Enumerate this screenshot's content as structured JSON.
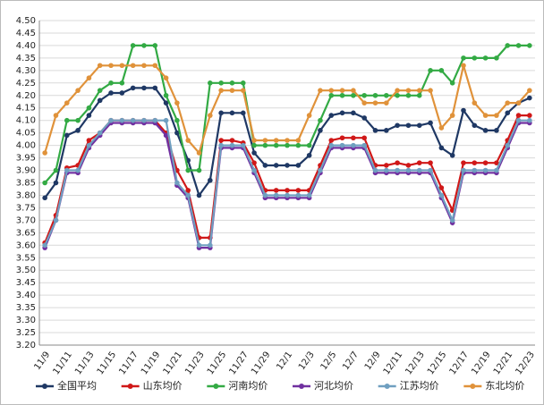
{
  "chart_data": {
    "type": "line",
    "categories": [
      "11/9",
      null,
      "11/11",
      null,
      "11/13",
      null,
      "11/15",
      null,
      "11/17",
      null,
      "11/19",
      null,
      "11/21",
      null,
      "11/23",
      null,
      "11/25",
      null,
      "11/27",
      null,
      "11/29",
      null,
      "12/1",
      null,
      "12/3",
      null,
      "12/5",
      null,
      "12/7",
      null,
      "12/9",
      null,
      "12/11",
      null,
      "12/13",
      null,
      "12/15",
      null,
      "12/17",
      null,
      "12/19",
      null,
      "12/21",
      null,
      "12/23"
    ],
    "series": [
      {
        "name": "全国平均",
        "color": "#1f3864",
        "values": [
          3.79,
          3.85,
          4.04,
          4.06,
          4.12,
          4.18,
          4.21,
          4.21,
          4.23,
          4.23,
          4.23,
          4.17,
          4.05,
          3.94,
          3.8,
          3.86,
          4.13,
          4.13,
          4.13,
          3.97,
          3.92,
          3.92,
          3.92,
          3.92,
          3.96,
          4.06,
          4.12,
          4.13,
          4.13,
          4.11,
          4.06,
          4.06,
          4.08,
          4.08,
          4.08,
          4.09,
          3.99,
          3.96,
          4.14,
          4.08,
          4.06,
          4.06,
          4.13,
          4.17,
          4.19
        ]
      },
      {
        "name": "山东均价",
        "color": "#d01818",
        "values": [
          3.61,
          3.72,
          3.91,
          3.92,
          4.02,
          4.05,
          4.1,
          4.1,
          4.1,
          4.1,
          4.1,
          4.05,
          3.9,
          3.82,
          3.63,
          3.63,
          4.02,
          4.02,
          4.01,
          3.93,
          3.82,
          3.82,
          3.82,
          3.82,
          3.82,
          3.92,
          4.02,
          4.03,
          4.03,
          4.03,
          3.92,
          3.92,
          3.93,
          3.92,
          3.93,
          3.93,
          3.83,
          3.74,
          3.93,
          3.93,
          3.93,
          3.93,
          4.02,
          4.12,
          4.12
        ]
      },
      {
        "name": "河南均价",
        "color": "#33aa44",
        "values": [
          3.85,
          3.9,
          4.1,
          4.1,
          4.15,
          4.22,
          4.25,
          4.25,
          4.4,
          4.4,
          4.4,
          4.2,
          4.1,
          3.9,
          3.9,
          4.25,
          4.25,
          4.25,
          4.25,
          4.0,
          4.0,
          4.0,
          4.0,
          4.0,
          4.0,
          4.1,
          4.2,
          4.2,
          4.2,
          4.2,
          4.2,
          4.2,
          4.2,
          4.2,
          4.2,
          4.3,
          4.3,
          4.25,
          4.35,
          4.35,
          4.35,
          4.35,
          4.4,
          4.4,
          4.4
        ]
      },
      {
        "name": "河北均价",
        "color": "#7030a0",
        "values": [
          3.59,
          3.7,
          3.89,
          3.89,
          3.99,
          4.04,
          4.09,
          4.09,
          4.09,
          4.09,
          4.09,
          4.04,
          3.84,
          3.79,
          3.59,
          3.59,
          3.99,
          3.99,
          3.99,
          3.89,
          3.79,
          3.79,
          3.79,
          3.79,
          3.79,
          3.89,
          3.99,
          3.99,
          3.99,
          3.99,
          3.89,
          3.89,
          3.89,
          3.89,
          3.89,
          3.89,
          3.79,
          3.69,
          3.89,
          3.89,
          3.89,
          3.89,
          3.99,
          4.09,
          4.09
        ]
      },
      {
        "name": "江苏均价",
        "color": "#6f9fc0",
        "values": [
          3.6,
          3.7,
          3.9,
          3.9,
          4.0,
          4.05,
          4.1,
          4.1,
          4.1,
          4.1,
          4.1,
          4.1,
          3.85,
          3.8,
          3.6,
          3.6,
          4.0,
          4.0,
          4.0,
          3.9,
          3.8,
          3.8,
          3.8,
          3.8,
          3.8,
          3.9,
          4.0,
          4.0,
          4.0,
          4.0,
          3.9,
          3.9,
          3.9,
          3.9,
          3.9,
          3.9,
          3.8,
          3.7,
          3.9,
          3.9,
          3.9,
          3.9,
          4.0,
          4.1,
          4.1
        ]
      },
      {
        "name": "东北均价",
        "color": "#e0923a",
        "values": [
          3.97,
          4.12,
          4.17,
          4.22,
          4.27,
          4.32,
          4.32,
          4.32,
          4.32,
          4.32,
          4.32,
          4.27,
          4.17,
          4.02,
          3.97,
          4.12,
          4.22,
          4.22,
          4.22,
          4.02,
          4.02,
          4.02,
          4.02,
          4.02,
          4.12,
          4.22,
          4.22,
          4.22,
          4.22,
          4.17,
          4.17,
          4.17,
          4.22,
          4.22,
          4.22,
          4.22,
          4.07,
          4.12,
          4.32,
          4.17,
          4.12,
          4.12,
          4.17,
          4.17,
          4.22
        ]
      }
    ],
    "ylim": [
      3.2,
      4.5
    ],
    "yticks": [
      {
        "value": 3.2,
        "label": "3.20"
      },
      {
        "value": 3.25,
        "label": "3.25"
      },
      {
        "value": 3.3,
        "label": "3.30"
      },
      {
        "value": 3.35,
        "label": "3.35"
      },
      {
        "value": 3.4,
        "label": "3.40"
      },
      {
        "value": 3.45,
        "label": "3.45"
      },
      {
        "value": 3.5,
        "label": "3.50"
      },
      {
        "value": 3.55,
        "label": "3.55"
      },
      {
        "value": 3.6,
        "label": "3.60"
      },
      {
        "value": 3.65,
        "label": "3.65"
      },
      {
        "value": 3.7,
        "label": "3.70"
      },
      {
        "value": 3.75,
        "label": "3.75"
      },
      {
        "value": 3.8,
        "label": "3.80"
      },
      {
        "value": 3.85,
        "label": "3.85"
      },
      {
        "value": 3.9,
        "label": "3.90"
      },
      {
        "value": 3.95,
        "label": "3.95"
      },
      {
        "value": 4.0,
        "label": "4.00"
      },
      {
        "value": 4.05,
        "label": "4.05"
      },
      {
        "value": 4.1,
        "label": "4.10"
      },
      {
        "value": 4.15,
        "label": "4.15"
      },
      {
        "value": 4.2,
        "label": "4.20"
      },
      {
        "value": 4.25,
        "label": "4.25"
      },
      {
        "value": 4.3,
        "label": "4.30"
      },
      {
        "value": 4.35,
        "label": "4.35"
      },
      {
        "value": 4.4,
        "label": "4.40"
      },
      {
        "value": 4.45,
        "label": "4.45"
      },
      {
        "value": 4.5,
        "label": "4.50"
      }
    ],
    "grid": true,
    "legend": "bottom"
  }
}
